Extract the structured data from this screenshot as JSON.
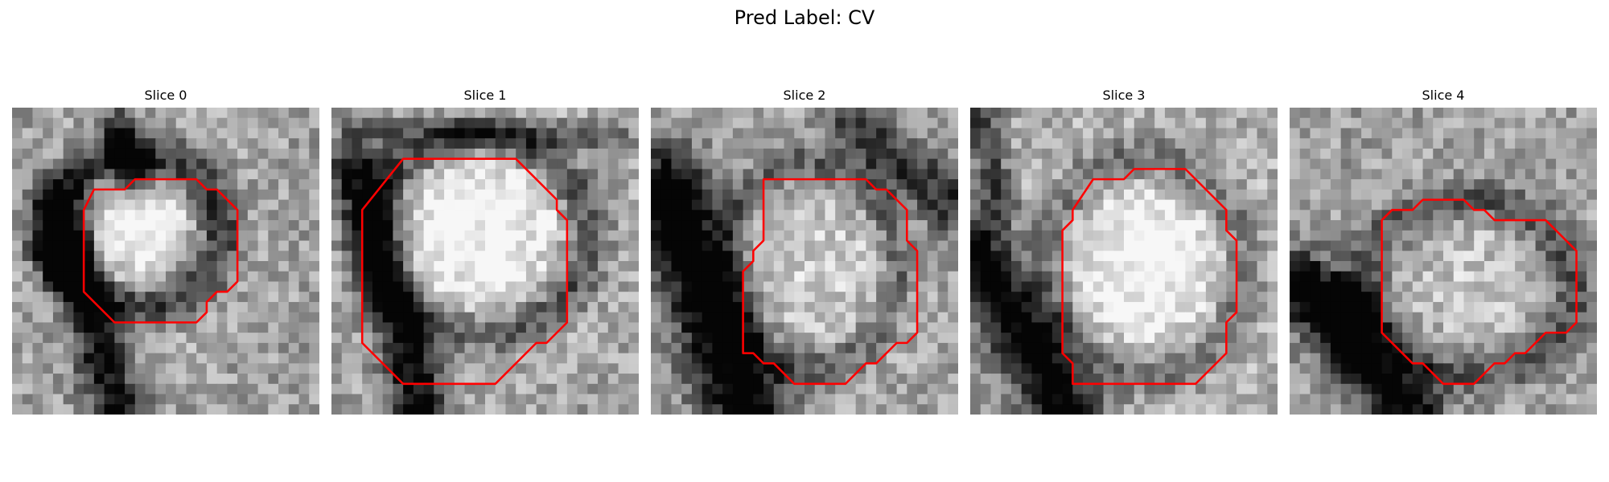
{
  "title": "Pred Label: CV",
  "contour_color": "#ff0000",
  "slices": [
    {
      "label": "Slice 0",
      "dark_features": [
        {
          "kind": "ring",
          "cx": 12.2,
          "cy": 12.0,
          "rx": 8.0,
          "ry": 7.4,
          "w": 1.6,
          "strength": 0.55
        },
        {
          "kind": "line",
          "x1": 4.5,
          "y1": 10.0,
          "x2": 10.5,
          "y2": 30.0,
          "w": 1.8,
          "strength": 0.6
        },
        {
          "kind": "blob",
          "x": 5.0,
          "y": 14.0,
          "r": 1.6,
          "strength": 0.75
        },
        {
          "kind": "line",
          "x1": 10.5,
          "y1": 2.0,
          "x2": 12.0,
          "y2": 7.0,
          "w": 1.3,
          "strength": 0.5
        }
      ],
      "bright_features": [
        {
          "kind": "blob",
          "x": 12.5,
          "y": 12.5,
          "r": 6.0,
          "strength": 0.35
        }
      ],
      "contour": [
        [
          8,
          8
        ],
        [
          11,
          8
        ],
        [
          12,
          7
        ],
        [
          18,
          7
        ],
        [
          19,
          8
        ],
        [
          20,
          8
        ],
        [
          22,
          10
        ],
        [
          22,
          17
        ],
        [
          21,
          18
        ],
        [
          20,
          18
        ],
        [
          19,
          19
        ],
        [
          19,
          20
        ],
        [
          18,
          21
        ],
        [
          10,
          21
        ],
        [
          7,
          18
        ],
        [
          7,
          10
        ]
      ]
    },
    {
      "label": "Slice 1",
      "dark_features": [
        {
          "kind": "line",
          "x1": 2.5,
          "y1": 6.0,
          "x2": 9.0,
          "y2": 30.0,
          "w": 2.0,
          "strength": 0.65
        },
        {
          "kind": "ring",
          "cx": 14.5,
          "cy": 12.5,
          "rx": 10.5,
          "ry": 9.5,
          "w": 1.5,
          "strength": 0.45
        },
        {
          "kind": "line",
          "x1": 2.0,
          "y1": 2.0,
          "x2": 28.0,
          "y2": 3.0,
          "w": 1.0,
          "strength": 0.3
        }
      ],
      "bright_features": [
        {
          "kind": "blob",
          "x": 14.0,
          "y": 12.0,
          "r": 8.0,
          "strength": 0.4
        }
      ],
      "contour": [
        [
          7,
          5
        ],
        [
          18,
          5
        ],
        [
          22,
          9
        ],
        [
          22,
          10
        ],
        [
          23,
          11
        ],
        [
          23,
          21
        ],
        [
          21,
          23
        ],
        [
          20,
          23
        ],
        [
          16,
          27
        ],
        [
          7,
          27
        ],
        [
          3,
          23
        ],
        [
          3,
          10
        ]
      ]
    },
    {
      "label": "Slice 2",
      "dark_features": [
        {
          "kind": "line",
          "x1": 1.5,
          "y1": 8.0,
          "x2": 10.0,
          "y2": 31.0,
          "w": 2.8,
          "strength": 0.8
        },
        {
          "kind": "line",
          "x1": 20.0,
          "y1": 2.0,
          "x2": 30.0,
          "y2": 10.0,
          "w": 2.0,
          "strength": 0.45
        },
        {
          "kind": "ring",
          "cx": 15.5,
          "cy": 15.5,
          "rx": 8.5,
          "ry": 10.0,
          "w": 1.2,
          "strength": 0.3
        }
      ],
      "bright_features": [
        {
          "kind": "blob",
          "x": 15.5,
          "y": 16.0,
          "r": 7.0,
          "strength": 0.2
        }
      ],
      "contour": [
        [
          11,
          7
        ],
        [
          21,
          7
        ],
        [
          22,
          8
        ],
        [
          23,
          8
        ],
        [
          25,
          10
        ],
        [
          25,
          13
        ],
        [
          26,
          14
        ],
        [
          26,
          22
        ],
        [
          25,
          23
        ],
        [
          24,
          23
        ],
        [
          22,
          25
        ],
        [
          21,
          25
        ],
        [
          19,
          27
        ],
        [
          14,
          27
        ],
        [
          12,
          25
        ],
        [
          11,
          25
        ],
        [
          10,
          24
        ],
        [
          9,
          24
        ],
        [
          9,
          16
        ],
        [
          10,
          15
        ],
        [
          10,
          14
        ],
        [
          11,
          13
        ]
      ]
    },
    {
      "label": "Slice 3",
      "dark_features": [
        {
          "kind": "line",
          "x1": 0.5,
          "y1": 14.0,
          "x2": 10.0,
          "y2": 31.0,
          "w": 2.4,
          "strength": 0.8
        },
        {
          "kind": "ring",
          "cx": 17.0,
          "cy": 15.5,
          "rx": 9.5,
          "ry": 10.5,
          "w": 1.6,
          "strength": 0.35
        },
        {
          "kind": "line",
          "x1": 1.0,
          "y1": 0.5,
          "x2": 3.0,
          "y2": 10.0,
          "w": 1.2,
          "strength": 0.4
        }
      ],
      "bright_features": [
        {
          "kind": "blob",
          "x": 17.0,
          "y": 15.5,
          "r": 8.5,
          "strength": 0.4
        }
      ],
      "contour": [
        [
          12,
          7
        ],
        [
          15,
          7
        ],
        [
          16,
          6
        ],
        [
          21,
          6
        ],
        [
          25,
          10
        ],
        [
          25,
          12
        ],
        [
          26,
          13
        ],
        [
          26,
          20
        ],
        [
          25,
          21
        ],
        [
          25,
          24
        ],
        [
          22,
          27
        ],
        [
          10,
          27
        ],
        [
          10,
          25
        ],
        [
          9,
          24
        ],
        [
          9,
          12
        ],
        [
          10,
          11
        ],
        [
          10,
          10
        ]
      ]
    },
    {
      "label": "Slice 4",
      "dark_features": [
        {
          "kind": "line",
          "x1": 1.0,
          "y1": 17.0,
          "x2": 12.0,
          "y2": 30.0,
          "w": 2.2,
          "strength": 0.7
        },
        {
          "kind": "blob",
          "x": 5.0,
          "y": 19.5,
          "r": 1.8,
          "strength": 0.8
        },
        {
          "kind": "ring",
          "cx": 17.5,
          "cy": 17.5,
          "rx": 10.0,
          "ry": 8.5,
          "w": 1.4,
          "strength": 0.35
        }
      ],
      "bright_features": [
        {
          "kind": "blob",
          "x": 17.5,
          "y": 17.0,
          "r": 6.5,
          "strength": 0.15
        }
      ],
      "contour": [
        [
          10,
          10
        ],
        [
          12,
          10
        ],
        [
          13,
          9
        ],
        [
          17,
          9
        ],
        [
          18,
          10
        ],
        [
          19,
          10
        ],
        [
          20,
          11
        ],
        [
          25,
          11
        ],
        [
          28,
          14
        ],
        [
          28,
          21
        ],
        [
          27,
          22
        ],
        [
          25,
          22
        ],
        [
          23,
          24
        ],
        [
          22,
          24
        ],
        [
          21,
          25
        ],
        [
          20,
          25
        ],
        [
          18,
          27
        ],
        [
          15,
          27
        ],
        [
          13,
          25
        ],
        [
          12,
          25
        ],
        [
          9,
          22
        ],
        [
          9,
          11
        ]
      ]
    }
  ]
}
